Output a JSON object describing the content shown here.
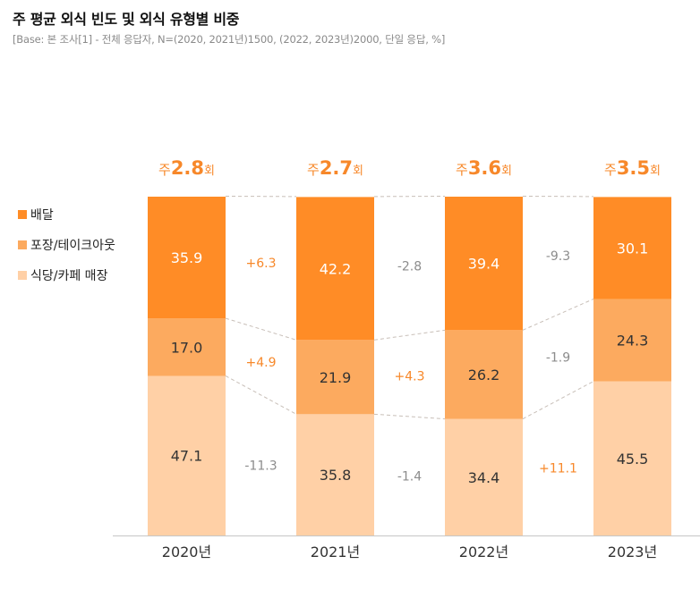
{
  "header": {
    "title": "주 평균 외식 빈도 및 외식 유형별 비중",
    "subtitle": "[Base: 본 조사[1] - 전체 응답자, N=(2020, 2021년)1500, (2022, 2023년)2000, 단일 응답, %]"
  },
  "colors": {
    "delivery": "#FF8C26",
    "takeout": "#FCAA5F",
    "dine_in": "#FFD0A6",
    "positive_delta": "#F7882A",
    "negative_delta": "#8C8C8C",
    "frequency_label": "#F7882A"
  },
  "legend": [
    {
      "key": "delivery",
      "label": "배달"
    },
    {
      "key": "takeout",
      "label": "포장/테이크아웃"
    },
    {
      "key": "dine_in",
      "label": "식당/카페 매장"
    }
  ],
  "chart_data": {
    "type": "bar",
    "stacked": true,
    "normalized": true,
    "title": "주 평균 외식 빈도 및 외식 유형별 비중",
    "categories": [
      "2020년",
      "2021년",
      "2022년",
      "2023년"
    ],
    "ylim": [
      0,
      100
    ],
    "grid": false,
    "legend_position": "left",
    "series": [
      {
        "name": "식당/카페 매장",
        "key": "dine_in",
        "values": [
          47.1,
          35.8,
          34.4,
          45.5
        ]
      },
      {
        "name": "포장/테이크아웃",
        "key": "takeout",
        "values": [
          17.0,
          21.9,
          26.2,
          24.3
        ]
      },
      {
        "name": "배달",
        "key": "delivery",
        "values": [
          35.9,
          42.2,
          39.4,
          30.1
        ]
      }
    ],
    "frequency": {
      "prefix": "주",
      "suffix": "회",
      "values": [
        "2.8",
        "2.7",
        "3.6",
        "3.5"
      ]
    },
    "deltas": {
      "delivery": [
        "+6.3",
        "-2.8",
        "-9.3"
      ],
      "takeout": [
        "+4.9",
        "+4.3",
        "-1.9"
      ],
      "dine_in": [
        "-11.3",
        "-1.4",
        "+11.1"
      ]
    }
  }
}
